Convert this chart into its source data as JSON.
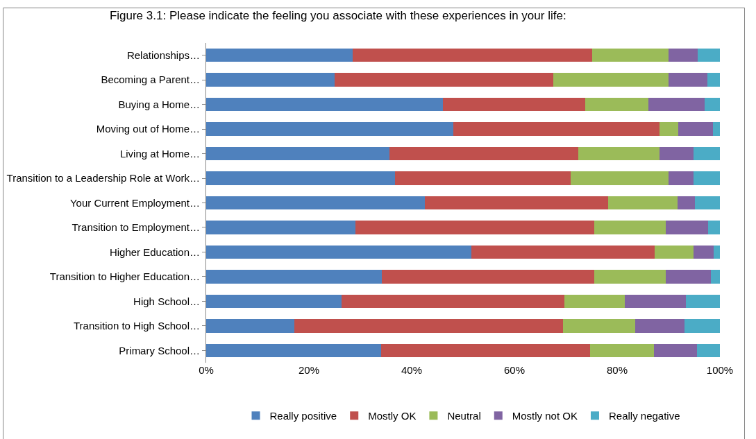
{
  "chart_data": {
    "type": "bar",
    "orientation": "horizontal",
    "stacked": true,
    "title": "Figure 3.1: Please indicate the feeling you associate with these experiences in your life:",
    "categories": [
      "Relationships…",
      "Becoming a Parent…",
      "Buying a Home…",
      "Moving out of Home…",
      "Living at Home…",
      "Transition to a Leadership Role at Work…",
      "Your Current Employment…",
      "Transition to Employment…",
      "Higher Education…",
      "Transition to Higher Education…",
      "High School…",
      "Transition to High School…",
      "Primary School…"
    ],
    "series": [
      {
        "name": "Really positive",
        "color": "#4f81bd",
        "values": [
          28.5,
          25.0,
          46.1,
          48.1,
          35.7,
          36.8,
          42.6,
          29.0,
          51.6,
          34.2,
          26.3,
          17.2,
          34.0
        ]
      },
      {
        "name": "Mostly OK",
        "color": "#c0504d",
        "values": [
          46.6,
          42.5,
          27.7,
          40.2,
          36.7,
          34.2,
          35.7,
          46.6,
          35.7,
          41.4,
          43.4,
          52.2,
          40.7
        ]
      },
      {
        "name": "Neutral",
        "color": "#9bbb59",
        "values": [
          14.9,
          22.5,
          12.3,
          3.6,
          15.9,
          19.0,
          13.5,
          13.9,
          7.5,
          13.9,
          11.8,
          14.1,
          12.4
        ]
      },
      {
        "name": "Mostly not OK",
        "color": "#8064a2",
        "values": [
          5.7,
          7.5,
          10.9,
          6.7,
          6.6,
          4.9,
          3.4,
          8.2,
          4.0,
          8.8,
          11.9,
          9.6,
          8.4
        ]
      },
      {
        "name": "Really negative",
        "color": "#4bacc6",
        "values": [
          4.3,
          2.5,
          3.0,
          1.4,
          5.1,
          5.1,
          4.8,
          2.3,
          1.2,
          1.7,
          6.6,
          6.9,
          4.5
        ]
      }
    ],
    "xlim": [
      0,
      100
    ],
    "xticks": [
      {
        "value": 0,
        "label": "0%"
      },
      {
        "value": 20,
        "label": "20%"
      },
      {
        "value": 40,
        "label": "40%"
      },
      {
        "value": 60,
        "label": "60%"
      },
      {
        "value": 80,
        "label": "80%"
      },
      {
        "value": 100,
        "label": "100%"
      }
    ],
    "grid": false,
    "legend": "bottom"
  }
}
